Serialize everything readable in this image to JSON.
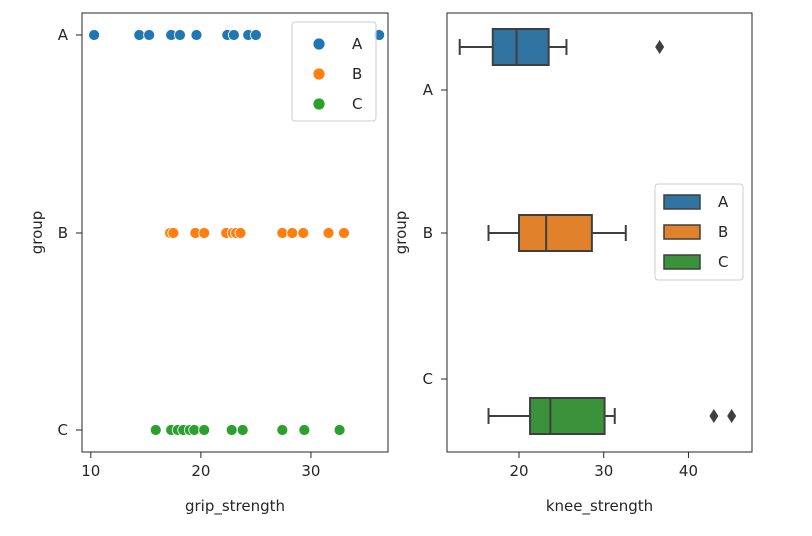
{
  "chart_data": [
    {
      "type": "scatter",
      "xlabel": "grip_strength",
      "ylabel": "group",
      "xlim": [
        9.2,
        37.0
      ],
      "x_ticks": [
        10,
        20,
        30
      ],
      "categories": [
        "A",
        "B",
        "C"
      ],
      "legend": {
        "position": "top-right",
        "entries": [
          "A",
          "B",
          "C"
        ]
      },
      "series": [
        {
          "name": "A",
          "color": "#1f77b4",
          "x": [
            10.3,
            14.4,
            15.3,
            17.3,
            18.1,
            19.6,
            22.4,
            23.0,
            24.3,
            25.0,
            36.2
          ]
        },
        {
          "name": "B",
          "color": "#ff7f0e",
          "x": [
            17.2,
            17.5,
            19.5,
            20.3,
            22.3,
            22.9,
            23.2,
            23.6,
            27.4,
            28.3,
            29.3,
            31.6,
            33.0
          ]
        },
        {
          "name": "C",
          "color": "#2ca02c",
          "x": [
            15.9,
            17.3,
            17.9,
            18.4,
            19.0,
            19.4,
            20.3,
            22.8,
            23.8,
            27.4,
            29.4,
            32.6
          ]
        }
      ]
    },
    {
      "type": "box",
      "xlabel": "knee_strength",
      "ylabel": "group",
      "xlim": [
        11.5,
        47.5
      ],
      "x_ticks": [
        20,
        30,
        40
      ],
      "categories": [
        "A",
        "B",
        "C"
      ],
      "legend": {
        "position": "center-right",
        "entries": [
          "A",
          "B",
          "C"
        ]
      },
      "boxes": [
        {
          "name": "A",
          "color": "#3274a1",
          "whisker_low": 13.0,
          "q1": 16.9,
          "median": 19.7,
          "q3": 23.5,
          "whisker_high": 25.6,
          "outliers": [
            36.6
          ]
        },
        {
          "name": "B",
          "color": "#e1812c",
          "whisker_low": 16.4,
          "q1": 20.0,
          "median": 23.2,
          "q3": 28.6,
          "whisker_high": 32.6,
          "outliers": []
        },
        {
          "name": "C",
          "color": "#3a923a",
          "whisker_low": 16.4,
          "q1": 21.3,
          "median": 23.7,
          "q3": 30.1,
          "whisker_high": 31.3,
          "outliers": [
            43.0,
            45.1
          ]
        }
      ]
    }
  ]
}
